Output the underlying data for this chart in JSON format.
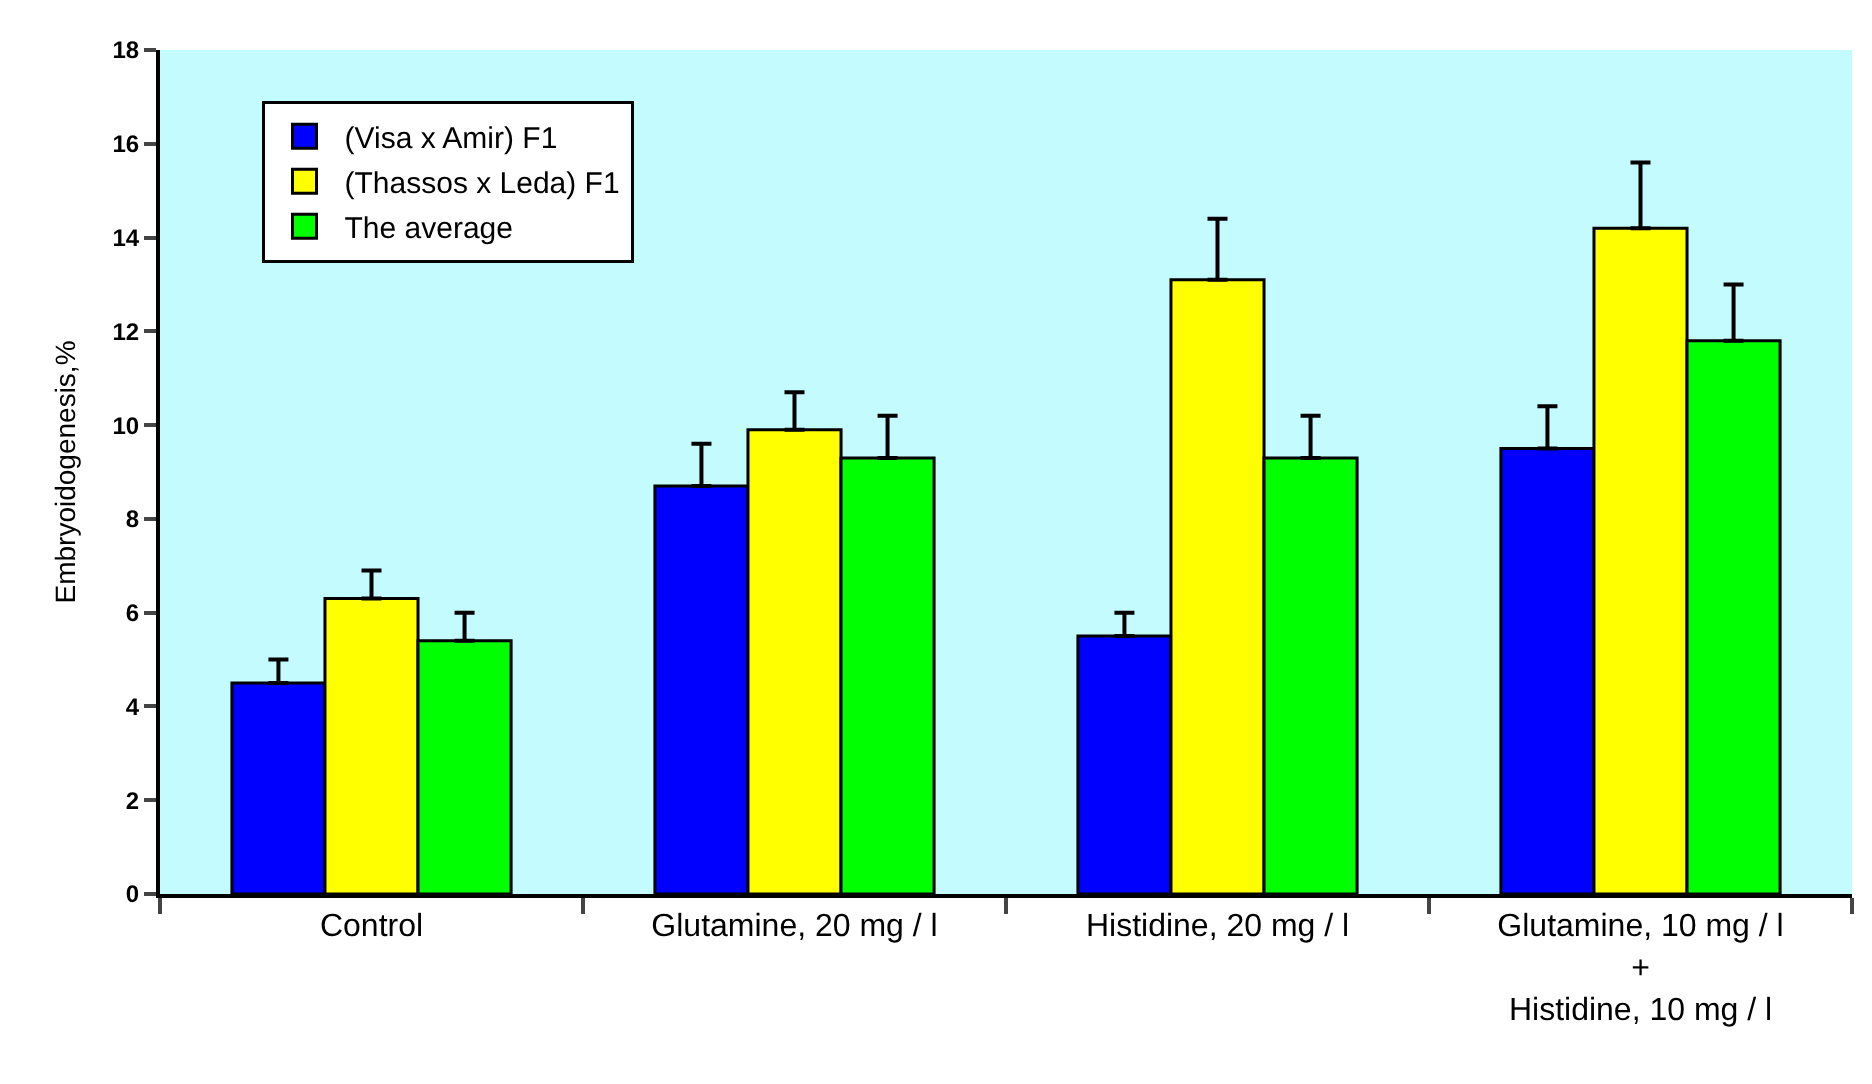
{
  "chart_data": {
    "type": "bar",
    "ylabel": "Embryoidogenesis,%",
    "categories": [
      "Control",
      "Glutamine, 20 mg / l",
      "Histidine, 20 mg / l",
      "Glutamine, 10 mg / l\n+\nHistidine, 10 mg / l"
    ],
    "series": [
      {
        "name": "(Visa x Amir) F1",
        "color": "#0000ff",
        "values": [
          4.5,
          8.7,
          5.5,
          9.5
        ],
        "errors": [
          [
            4.5,
            5.0
          ],
          [
            8.7,
            9.6
          ],
          [
            5.5,
            6.0
          ],
          [
            9.5,
            10.4
          ]
        ]
      },
      {
        "name": "(Thassos x Leda) F1",
        "color": "#ffff00",
        "values": [
          6.3,
          9.9,
          13.1,
          14.2
        ],
        "errors": [
          [
            6.3,
            6.9
          ],
          [
            9.9,
            10.7
          ],
          [
            13.1,
            14.4
          ],
          [
            14.2,
            15.6
          ]
        ]
      },
      {
        "name": "The average",
        "color": "#00ff00",
        "values": [
          5.4,
          9.3,
          9.3,
          11.8
        ],
        "errors": [
          [
            5.4,
            6.0
          ],
          [
            9.3,
            10.2
          ],
          [
            9.3,
            10.2
          ],
          [
            11.8,
            13.0
          ]
        ]
      }
    ],
    "ylim": [
      0,
      18
    ],
    "yticks": [
      0,
      2,
      4,
      6,
      8,
      10,
      12,
      14,
      16,
      18
    ],
    "grid": false,
    "legend": "top left"
  }
}
